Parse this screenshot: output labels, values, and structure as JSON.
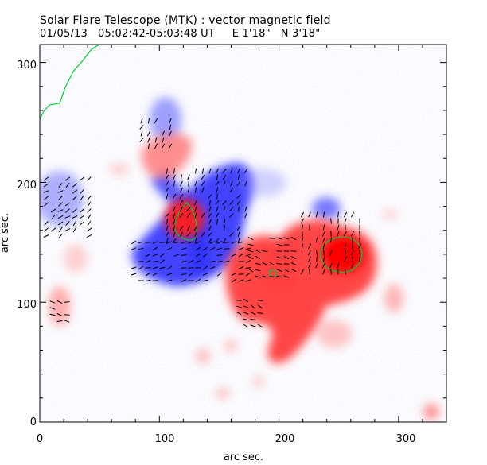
{
  "header": {
    "title": "Solar Flare Telescope (MTK) : vector magnetic field",
    "subtitle": "01/05/13   05:02:42-05:03:48 UT     E 1'18\"   N 3'18\""
  },
  "axes": {
    "xlabel": "arc sec.",
    "ylabel": "arc sec.",
    "xlim": [
      0,
      340
    ],
    "ylim": [
      0,
      315
    ],
    "xticks": [
      "0",
      "100",
      "200",
      "300"
    ],
    "yticks": [
      "0",
      "100",
      "200",
      "300"
    ],
    "xtick_values": [
      0,
      100,
      200,
      300
    ],
    "ytick_values": [
      0,
      100,
      200,
      300
    ]
  },
  "colors": {
    "positive_field": "#ff3030",
    "negative_field": "#3030ff",
    "contour": "#00cc33",
    "vectors": "#000000"
  }
}
